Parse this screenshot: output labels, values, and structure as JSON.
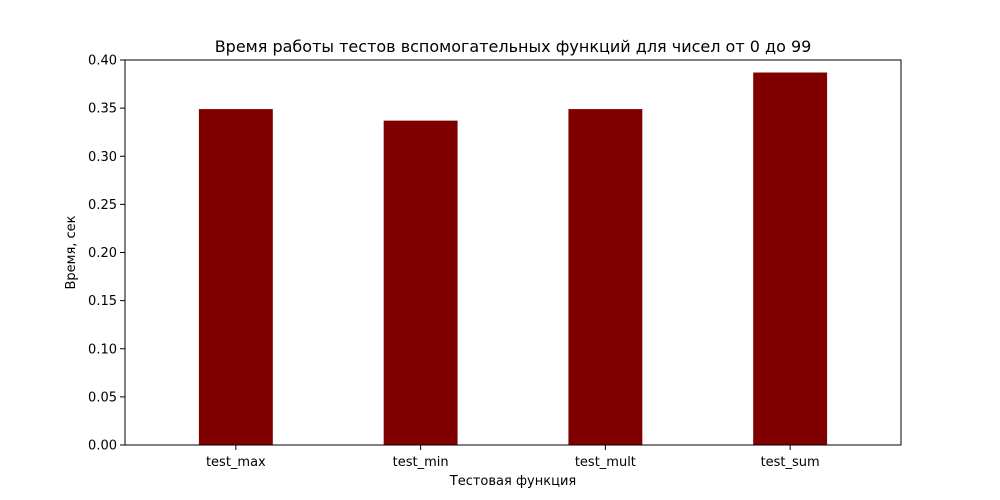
{
  "chart_data": {
    "type": "bar",
    "title": "Время работы тестов вспомогательных функций для чисел от 0 до 99",
    "xlabel": "Тестовая функция",
    "ylabel": "Время, сек",
    "categories": [
      "test_max",
      "test_min",
      "test_mult",
      "test_sum"
    ],
    "values": [
      0.349,
      0.337,
      0.349,
      0.387
    ],
    "ylim": [
      0,
      0.4
    ],
    "yticks": [
      "0.00",
      "0.05",
      "0.10",
      "0.15",
      "0.20",
      "0.25",
      "0.30",
      "0.35",
      "0.40"
    ],
    "bar_color": "#800000",
    "grid": false,
    "legend": "none"
  }
}
